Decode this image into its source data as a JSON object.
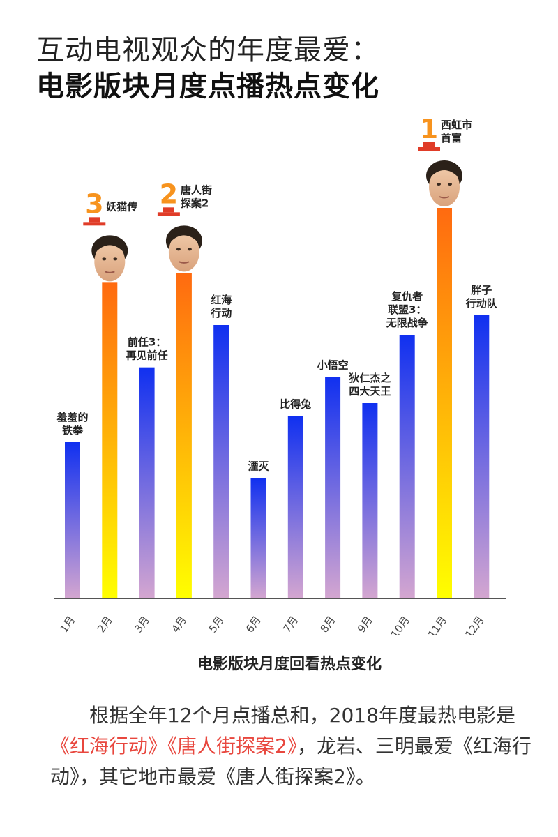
{
  "title": {
    "line1": "互动电视观众的年度最爱：",
    "line2": "电影版块月度点播热点变化"
  },
  "chart_caption": "电影版块月度回看热点变化",
  "paragraph": {
    "part1": "根据全年12个月点播总和，2018年度最热电影是",
    "highlight": "《红海行动》《唐人街探案2》",
    "part2": "，龙岩、三明最爱《红海行动》，其它地市最爱《唐人街探案2》。"
  },
  "colors": {
    "blue_top": "#1030f0",
    "blue_bottom": "#d4a6d0",
    "orange_top": "#ff6a10",
    "orange_bottom": "#ffff00",
    "rank_icon": "#f7931e",
    "rank_base": "#e03c28",
    "axis": "#555555"
  },
  "chart_data": {
    "type": "bar",
    "categories": [
      "1月",
      "2月",
      "3月",
      "4月",
      "5月",
      "6月",
      "7月",
      "8月",
      "9月",
      "10月",
      "11月",
      "12月"
    ],
    "values": [
      48,
      97,
      71,
      100,
      84,
      37,
      56,
      68,
      60,
      81,
      120,
      87
    ],
    "ylim": [
      0,
      120
    ],
    "bar_labels": [
      [
        "羞羞的",
        "铁拳"
      ],
      [
        "妖猫传"
      ],
      [
        "前任3：",
        "再见前任"
      ],
      [
        "唐人街",
        "探案2"
      ],
      [
        "红海",
        "行动"
      ],
      [
        "湮灭"
      ],
      [
        "比得兔"
      ],
      [
        "小悟空"
      ],
      [
        "狄仁杰之",
        "四大天王"
      ],
      [
        "复仇者",
        "联盟3：",
        "无限战争"
      ],
      [
        "西虹市",
        "首富"
      ],
      [
        "胖子",
        "行动队"
      ]
    ],
    "highlighted": [
      false,
      true,
      false,
      true,
      false,
      false,
      false,
      false,
      false,
      false,
      true,
      false
    ],
    "ranks": [
      null,
      "3",
      null,
      "2",
      null,
      null,
      null,
      null,
      null,
      null,
      "1",
      null
    ],
    "xlabel": "",
    "ylabel": "",
    "grid": false,
    "legend": "none"
  }
}
